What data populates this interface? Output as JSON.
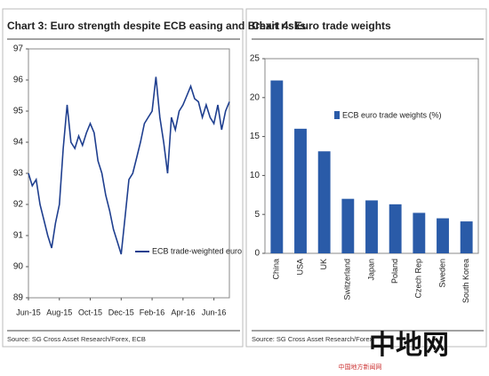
{
  "chart_data": [
    {
      "type": "line",
      "title": "Chart 3: Euro strength despite ECB easing and Brexit risks",
      "categories": [
        "Jun-15",
        null,
        null,
        null,
        null,
        null,
        null,
        null,
        "Aug-15",
        null,
        null,
        null,
        null,
        null,
        null,
        null,
        "Oct-15",
        null,
        null,
        null,
        null,
        null,
        null,
        null,
        "Dec-15",
        null,
        null,
        null,
        null,
        null,
        null,
        null,
        "Feb-16",
        null,
        null,
        null,
        null,
        null,
        null,
        null,
        "Apr-16",
        null,
        null,
        null,
        null,
        null,
        null,
        null,
        "Jun-16",
        null,
        null,
        null,
        null
      ],
      "series": [
        {
          "name": "ECB trade-weighted  euro",
          "color": "#1f3f8f",
          "values": [
            93.0,
            92.6,
            92.8,
            92.0,
            91.5,
            91.0,
            90.6,
            91.4,
            92.0,
            93.8,
            95.2,
            94.0,
            93.8,
            94.2,
            93.9,
            94.3,
            94.6,
            94.3,
            93.4,
            93.0,
            92.3,
            91.8,
            91.2,
            90.8,
            90.4,
            91.6,
            92.8,
            93.0,
            93.5,
            94.0,
            94.6,
            94.8,
            95.0,
            96.1,
            94.8,
            94.0,
            93.0,
            94.8,
            94.4,
            95.0,
            95.2,
            95.5,
            95.8,
            95.4,
            95.3,
            94.8,
            95.2,
            94.8,
            94.6,
            95.2,
            94.4,
            95.0,
            95.3
          ]
        }
      ],
      "ylim": [
        89,
        97
      ],
      "yticks": [
        89,
        90,
        91,
        92,
        93,
        94,
        95,
        96,
        97
      ],
      "source": "Source: SG Cross Asset Research/Forex, ECB"
    },
    {
      "type": "bar",
      "title": "Chart 4: Euro trade weights",
      "categories": [
        "China",
        "USA",
        "UK",
        "Switzerland",
        "Japan",
        "Poland",
        "Czech Rep",
        "Sweden",
        "South Korea"
      ],
      "series": [
        {
          "name": "ECB euro trade weights (%)",
          "color": "#2a5ba8",
          "values": [
            22.2,
            16,
            13.1,
            7,
            6.8,
            6.3,
            5.2,
            4.5,
            4.1
          ]
        }
      ],
      "ylim": [
        0,
        25
      ],
      "yticks": [
        0,
        5,
        10,
        15,
        20,
        25
      ],
      "source": "Source: SG Cross Asset Research/Forex"
    }
  ],
  "watermark": {
    "logo": "中地网",
    "caption": "中国地方新闻网"
  }
}
